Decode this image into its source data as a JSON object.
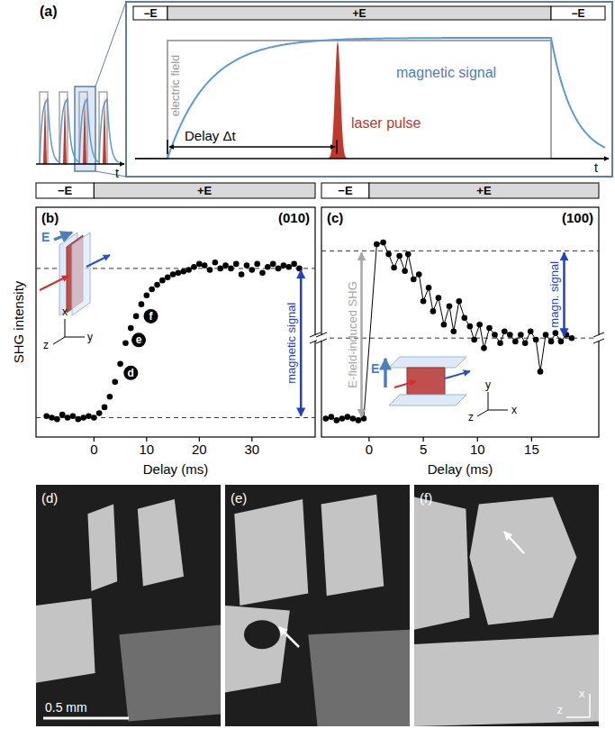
{
  "panel_a": {
    "label": "(a)",
    "field_bar": [
      "−E",
      "+E",
      "−E"
    ],
    "time_label": "t",
    "electric_field": "electric field",
    "magnetic_signal": "magnetic signal",
    "laser_pulse": "laser pulse",
    "delay": "Delay Δt"
  },
  "chart_data": [
    {
      "type": "scatter",
      "label": "(b)",
      "title": "(010)",
      "x_label": "Delay (ms)",
      "y_label": "SHG intensity",
      "x": [
        -9,
        -8,
        -7,
        -6,
        -5,
        -4,
        -3,
        -2,
        -1,
        0,
        1,
        2,
        3,
        4,
        5,
        6,
        7,
        8,
        9,
        10,
        11,
        12,
        13,
        14,
        15,
        16,
        17,
        18,
        19,
        20,
        21,
        22,
        23,
        24,
        25,
        26,
        27,
        28,
        29,
        30,
        31,
        32,
        33,
        34,
        35,
        36,
        37,
        38,
        39
      ],
      "values": [
        0.01,
        0.0,
        -0.01,
        0.02,
        0.0,
        0.01,
        -0.01,
        0.0,
        0.01,
        0.0,
        0.03,
        0.07,
        0.14,
        0.24,
        0.36,
        0.5,
        0.6,
        0.68,
        0.76,
        0.82,
        0.86,
        0.89,
        0.92,
        0.94,
        0.96,
        0.97,
        0.98,
        0.99,
        1.01,
        1.03,
        1.02,
        0.99,
        1.04,
        1.0,
        1.02,
        1.0,
        1.03,
        0.96,
        1.02,
        0.99,
        1.03,
        0.97,
        1.01,
        1.03,
        1.0,
        1.02,
        1.01,
        1.03,
        1.0
      ],
      "color": "#000000",
      "marker": "circle",
      "xlim": [
        -11,
        42
      ],
      "xticks": [
        0,
        10,
        20,
        30
      ],
      "ylim": [
        -0.13,
        1.41
      ],
      "tick_labels": "x",
      "field_bar": [
        {
          "label": "−E",
          "from": -11,
          "to": 0,
          "color": "#ffffff"
        },
        {
          "label": "+E",
          "from": 0,
          "to": 42,
          "color": "#d9d9d9"
        }
      ],
      "reference_lines": [
        0,
        1
      ],
      "arrows": [
        {
          "label": "magnetic signal",
          "x": 39.3,
          "from": 0,
          "to": 1,
          "color": "#1f3fd1"
        }
      ],
      "annotations": [
        {
          "text": "d",
          "x": 7,
          "y": 0.3
        },
        {
          "text": "e",
          "x": 8.5,
          "y": 0.52
        },
        {
          "text": "f",
          "x": 10.8,
          "y": 0.68
        }
      ],
      "inset": {
        "field": "E",
        "axes": [
          "x",
          "y",
          "z"
        ]
      }
    },
    {
      "type": "line",
      "label": "(c)",
      "title": "(100)",
      "x_label": "Delay (ms)",
      "x": [
        -4.0,
        -3.5,
        -3.0,
        -2.5,
        -2.0,
        -1.5,
        -1.0,
        -0.5,
        0.7,
        1.3,
        1.8,
        2.3,
        2.8,
        3.3,
        3.6,
        4.1,
        4.6,
        5.0,
        5.5,
        5.9,
        6.4,
        6.9,
        7.4,
        7.8,
        8.3,
        8.8,
        9.3,
        9.7,
        10.2,
        10.6,
        11.1,
        11.6,
        12.1,
        12.5,
        13.0,
        13.5,
        14.0,
        14.4,
        14.9,
        15.4,
        15.8,
        16.3,
        16.8,
        17.2,
        17.7,
        18.2,
        18.7
      ],
      "values": [
        0.0,
        0.01,
        -0.01,
        0.0,
        0.01,
        0.0,
        -0.01,
        0.0,
        1.04,
        1.05,
        0.98,
        0.9,
        0.97,
        0.88,
        0.98,
        0.83,
        0.86,
        0.7,
        0.78,
        0.64,
        0.72,
        0.56,
        0.67,
        0.52,
        0.7,
        0.6,
        0.55,
        0.47,
        0.56,
        0.42,
        0.54,
        0.5,
        0.45,
        0.52,
        0.5,
        0.46,
        0.5,
        0.45,
        0.52,
        0.47,
        0.28,
        0.5,
        0.46,
        0.51,
        0.46,
        0.5,
        0.48
      ],
      "color": "#000000",
      "marker": "circle",
      "line_style": "solid",
      "xlim": [
        -4.4,
        21.2
      ],
      "xticks": [
        0,
        5,
        10,
        15
      ],
      "ylim": [
        -0.11,
        1.26
      ],
      "tick_labels": "x",
      "field_bar": [
        {
          "label": "−E",
          "from": -4.4,
          "to": 0,
          "color": "#ffffff"
        },
        {
          "label": "+E",
          "from": 0,
          "to": 21.2,
          "color": "#d9d9d9"
        }
      ],
      "reference_lines": [
        0.48,
        1
      ],
      "arrows": [
        {
          "label": "E-field-induced SHG",
          "x": -0.7,
          "from": 0,
          "to": 1,
          "color": "#a6a6a6"
        },
        {
          "label": "magn. signal",
          "x": 18,
          "from": 0.48,
          "to": 1,
          "color": "#1f3fd1"
        }
      ],
      "inset": {
        "field": "E",
        "axes": [
          "x",
          "y",
          "z"
        ]
      }
    }
  ],
  "images": {
    "labels": [
      "(d)",
      "(e)",
      "(f)"
    ],
    "scale_bar": "0.5 mm",
    "axes": [
      "x",
      "z"
    ]
  }
}
